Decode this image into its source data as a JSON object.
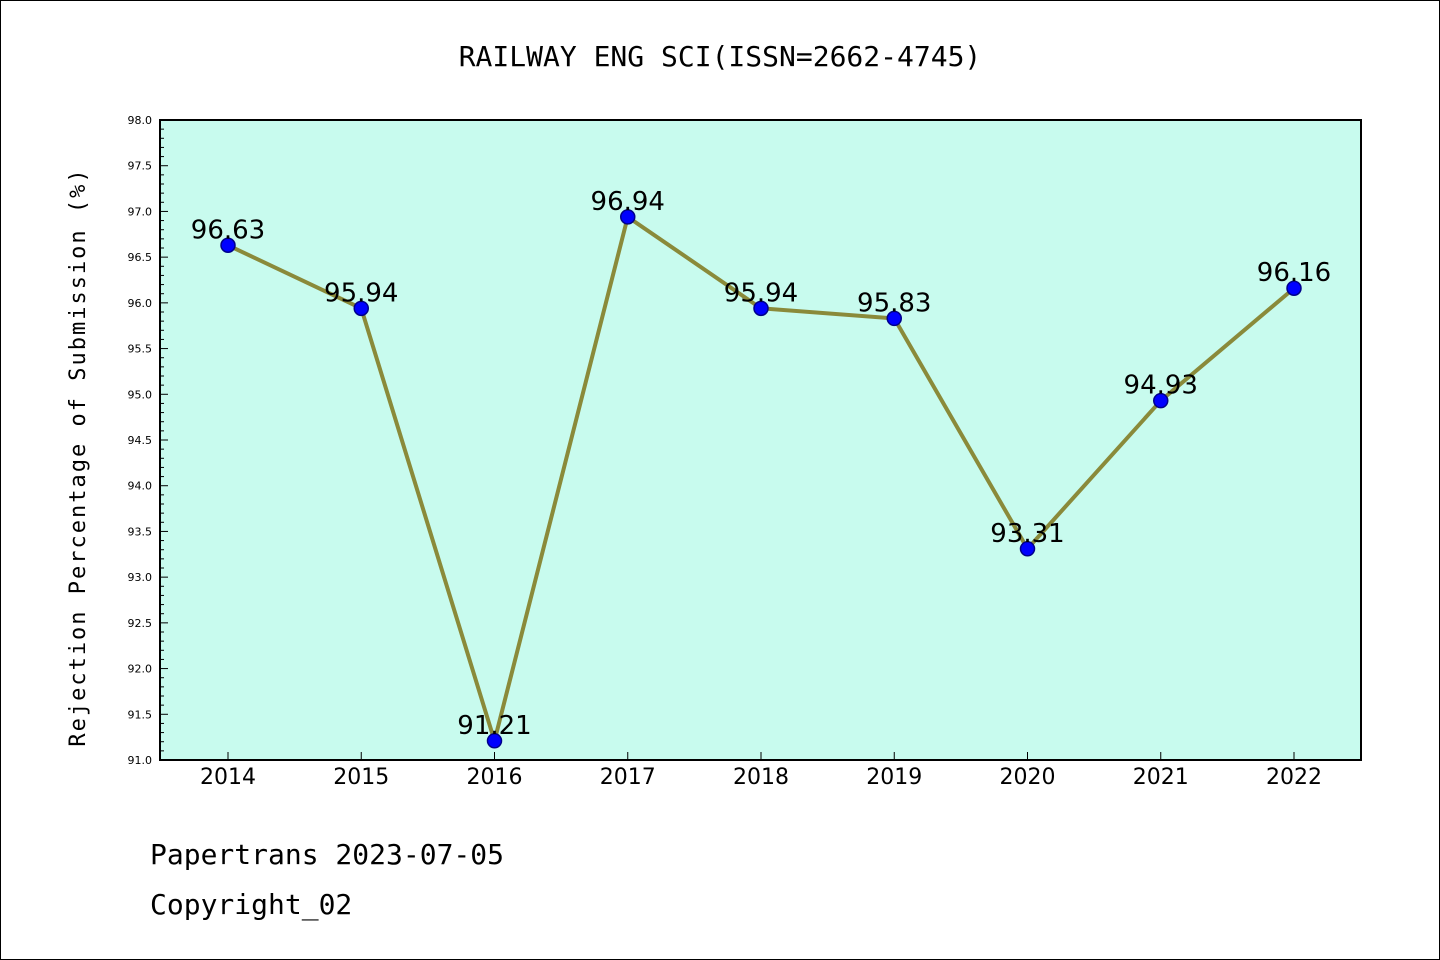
{
  "chart_data": {
    "type": "line",
    "title": "RAILWAY ENG SCI(ISSN=2662-4745)",
    "xlabel": "",
    "ylabel": "Rejection Percentage of Submission (%)",
    "categories": [
      "2014",
      "2015",
      "2016",
      "2017",
      "2018",
      "2019",
      "2020",
      "2021",
      "2022"
    ],
    "values": [
      96.63,
      95.94,
      91.21,
      96.94,
      95.94,
      95.83,
      93.31,
      94.93,
      96.16
    ],
    "data_labels": [
      "96.63",
      "95.94",
      "91.21",
      "96.94",
      "95.94",
      "95.83",
      "93.31",
      "94.93",
      "96.16"
    ],
    "ylim": [
      91.0,
      98.0
    ],
    "yticks": [
      "91.0",
      "91.5",
      "92.0",
      "92.5",
      "93.0",
      "93.5",
      "94.0",
      "94.5",
      "95.0",
      "95.5",
      "96.0",
      "96.5",
      "97.0",
      "97.5",
      "98.0"
    ],
    "grid": false,
    "colors": {
      "plot_background": "#c8fbee",
      "line": "#8a8a3a",
      "marker": "#0000ff",
      "marker_edge": "#00008b"
    }
  },
  "footer": {
    "line1": "Papertrans 2023-07-05",
    "line2": "Copyright_02"
  }
}
